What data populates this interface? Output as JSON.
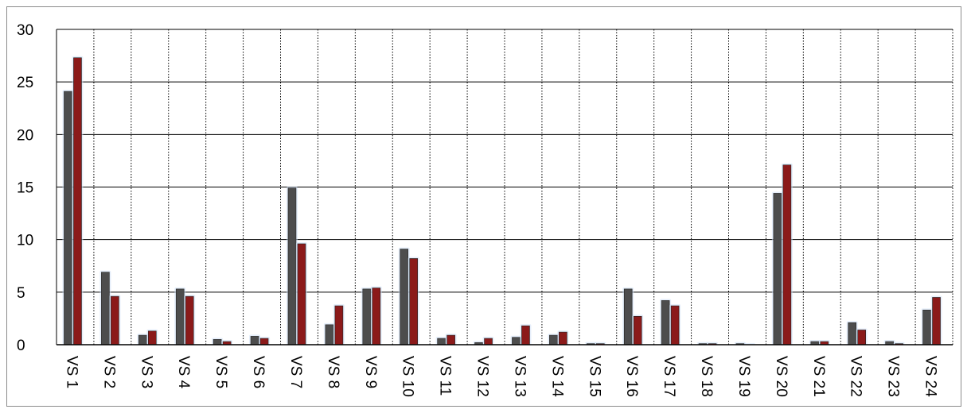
{
  "chart_data": {
    "type": "bar",
    "title": "",
    "xlabel": "",
    "ylabel": "",
    "ylim": [
      0,
      30
    ],
    "yticks": [
      "0",
      "5",
      "10",
      "15",
      "20",
      "25",
      "30"
    ],
    "grid": true,
    "categories": [
      "VS 1",
      "VS 2",
      "VS 3",
      "VS 4",
      "VS 5",
      "VS 6",
      "VS 7",
      "VS 8",
      "VS 9",
      "VS 10",
      "VS 11",
      "VS 12",
      "VS 13",
      "VS 14",
      "VS 15",
      "VS 16",
      "VS 17",
      "VS 18",
      "VS 19",
      "VS 20",
      "VS 21",
      "VS 22",
      "VS 23",
      "VS 24"
    ],
    "series": [
      {
        "color": "#4d4d4d",
        "values": [
          24.1,
          6.9,
          0.9,
          5.3,
          0.5,
          0.8,
          14.9,
          1.9,
          5.3,
          9.1,
          0.6,
          0.2,
          0.7,
          0.9,
          0.1,
          5.3,
          4.2,
          0.1,
          0.1,
          14.4,
          0.3,
          2.1,
          0.3,
          3.3
        ]
      },
      {
        "color": "#8b1a1a",
        "values": [
          27.3,
          4.6,
          1.3,
          4.6,
          0.3,
          0.6,
          9.6,
          3.7,
          5.4,
          8.2,
          0.9,
          0.6,
          1.8,
          1.2,
          0.1,
          2.7,
          3.7,
          0.1,
          0.0,
          17.1,
          0.3,
          1.4,
          0.1,
          4.5
        ]
      }
    ]
  }
}
